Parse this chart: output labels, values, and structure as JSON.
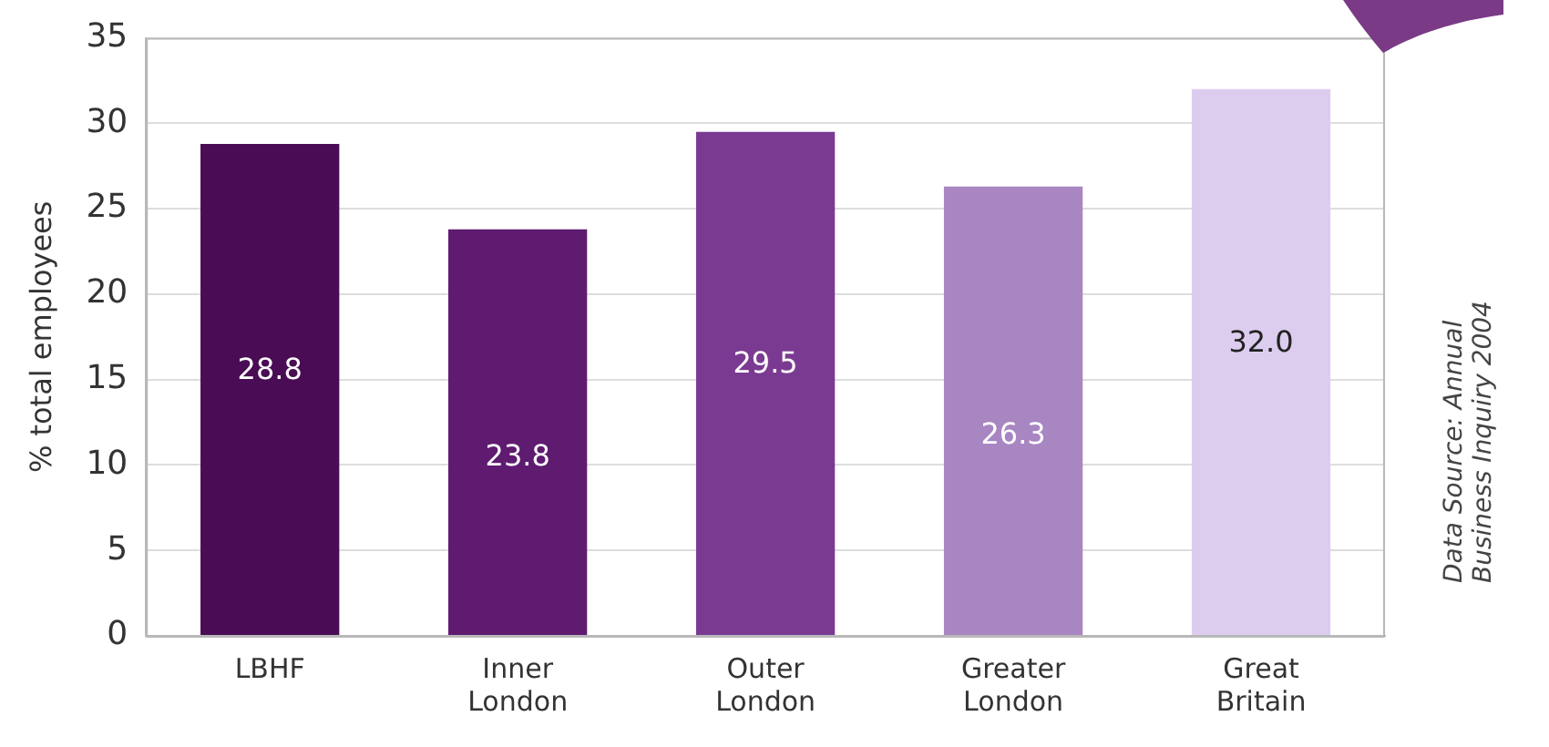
{
  "chart_data": {
    "type": "bar",
    "ylabel": "% total employees",
    "categories": [
      "LBHF",
      "Inner London",
      "Outer London",
      "Greater London",
      "Great Britain"
    ],
    "values": [
      28.8,
      23.8,
      29.5,
      26.3,
      32.0
    ],
    "colors": [
      "#4a0c54",
      "#5f1b70",
      "#7b3a92",
      "#a886c2",
      "#dccdef"
    ],
    "value_labels": [
      "28.8",
      "23.8",
      "29.5",
      "26.3",
      "32.0"
    ],
    "ylim": [
      0,
      35
    ],
    "yticks": [
      0,
      5,
      10,
      15,
      20,
      25,
      30,
      35
    ],
    "grid": "y",
    "legend": false,
    "annotations": [
      "Data Source: Annual Business Inquiry 2004"
    ]
  }
}
